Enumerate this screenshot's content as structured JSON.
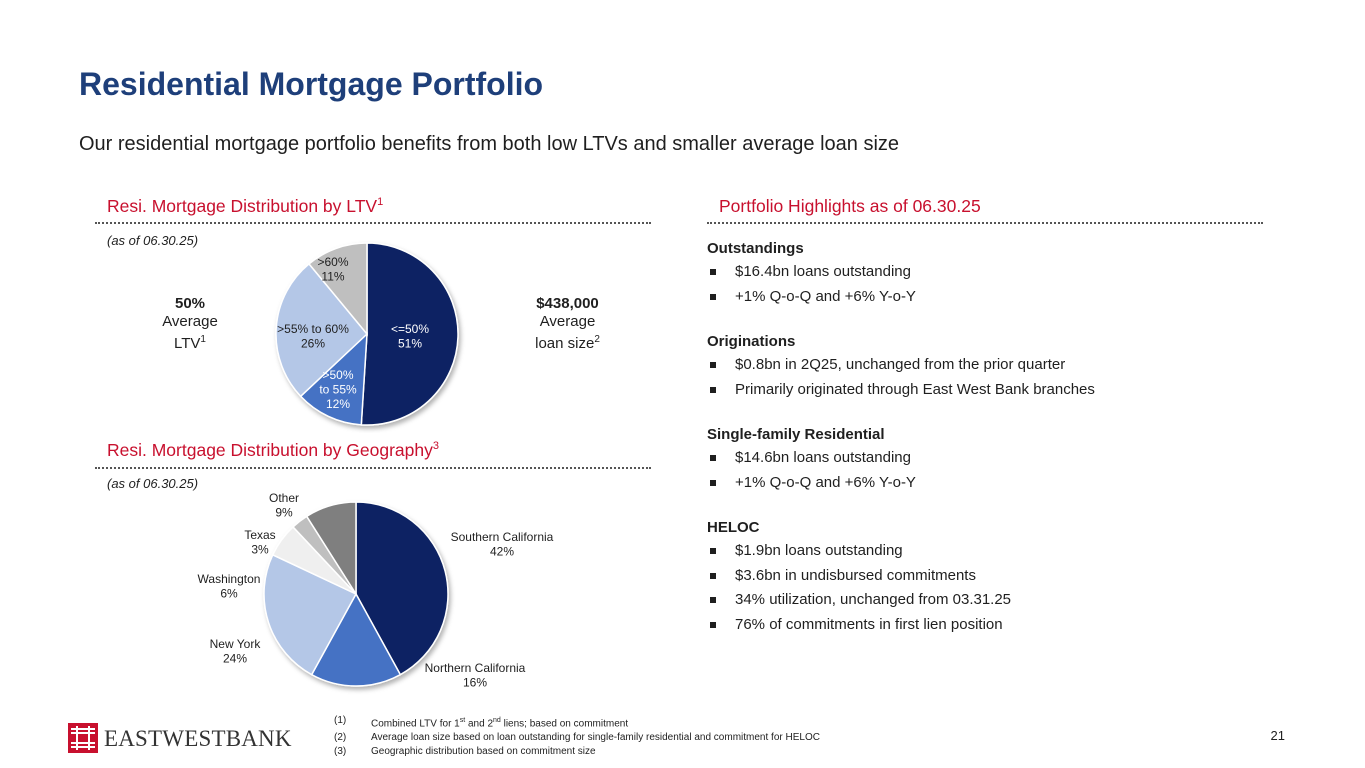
{
  "title": "Residential Mortgage Portfolio",
  "subtitle": "Our residential mortgage portfolio benefits from both low LTVs and smaller average loan size",
  "ltv_section": {
    "heading": "Resi. Mortgage Distribution by LTV",
    "heading_sup": "1",
    "as_of": "(as of 06.30.25)",
    "left_callout": {
      "value": "50%",
      "line1": "Average",
      "line2": "LTV",
      "sup": "1"
    },
    "right_callout": {
      "value": "$438,000",
      "line1": "Average",
      "line2": "loan size",
      "sup": "2"
    }
  },
  "geo_section": {
    "heading": "Resi. Mortgage Distribution by Geography",
    "heading_sup": "3",
    "as_of": "(as of 06.30.25)"
  },
  "highlights": {
    "heading": "Portfolio Highlights as of 06.30.25",
    "groups": [
      {
        "title": "Outstandings",
        "items": [
          "$16.4bn loans outstanding",
          "+1% Q-o-Q and +6% Y-o-Y"
        ]
      },
      {
        "title": "Originations",
        "items": [
          "$0.8bn in 2Q25, unchanged from the prior quarter",
          "Primarily originated through East West Bank branches"
        ]
      },
      {
        "title": "Single-family Residential",
        "items": [
          "$14.6bn loans outstanding",
          "+1% Q-o-Q and +6% Y-o-Y"
        ]
      },
      {
        "title": "HELOC",
        "items": [
          "$1.9bn loans outstanding",
          "$3.6bn in undisbursed commitments",
          "34% utilization, unchanged from 03.31.25",
          "76% of commitments in first lien position"
        ]
      }
    ]
  },
  "chart_data": [
    {
      "type": "pie",
      "title": "Resi. Mortgage Distribution by LTV",
      "slices": [
        {
          "label": "<=50%",
          "pct": "51%",
          "value": 51,
          "color": "#0d2463"
        },
        {
          "label": ">50% to 55%",
          "pct": "12%",
          "value": 12,
          "color": "#4472c4"
        },
        {
          "label": ">55% to 60%",
          "pct": "26%",
          "value": 26,
          "color": "#b4c7e7"
        },
        {
          "label": ">60%",
          "pct": "11%",
          "value": 11,
          "color": "#bfbfbf"
        }
      ]
    },
    {
      "type": "pie",
      "title": "Resi. Mortgage Distribution by Geography",
      "slices": [
        {
          "label": "Southern California",
          "pct": "42%",
          "value": 42,
          "color": "#0d2463"
        },
        {
          "label": "Northern California",
          "pct": "16%",
          "value": 16,
          "color": "#4472c4"
        },
        {
          "label": "New York",
          "pct": "24%",
          "value": 24,
          "color": "#b4c7e7"
        },
        {
          "label": "Washington",
          "pct": "6%",
          "value": 6,
          "color": "#efefef"
        },
        {
          "label": "Texas",
          "pct": "3%",
          "value": 3,
          "color": "#bfbfbf"
        },
        {
          "label": "Other",
          "pct": "9%",
          "value": 9,
          "color": "#7f7f7f"
        }
      ]
    }
  ],
  "logo": {
    "text": "EASTWESTBANK",
    "brand_color": "#c8102e"
  },
  "footnotes": [
    {
      "num": "(1)",
      "text_before": "Combined LTV for 1",
      "sup1": "st",
      "mid": " and 2",
      "sup2": "nd",
      "text_after": " liens; based on commitment"
    },
    {
      "num": "(2)",
      "text": "Average loan size based on loan outstanding for single-family residential and commitment for HELOC"
    },
    {
      "num": "(3)",
      "text": "Geographic distribution based on commitment size"
    }
  ],
  "page_number": "21"
}
